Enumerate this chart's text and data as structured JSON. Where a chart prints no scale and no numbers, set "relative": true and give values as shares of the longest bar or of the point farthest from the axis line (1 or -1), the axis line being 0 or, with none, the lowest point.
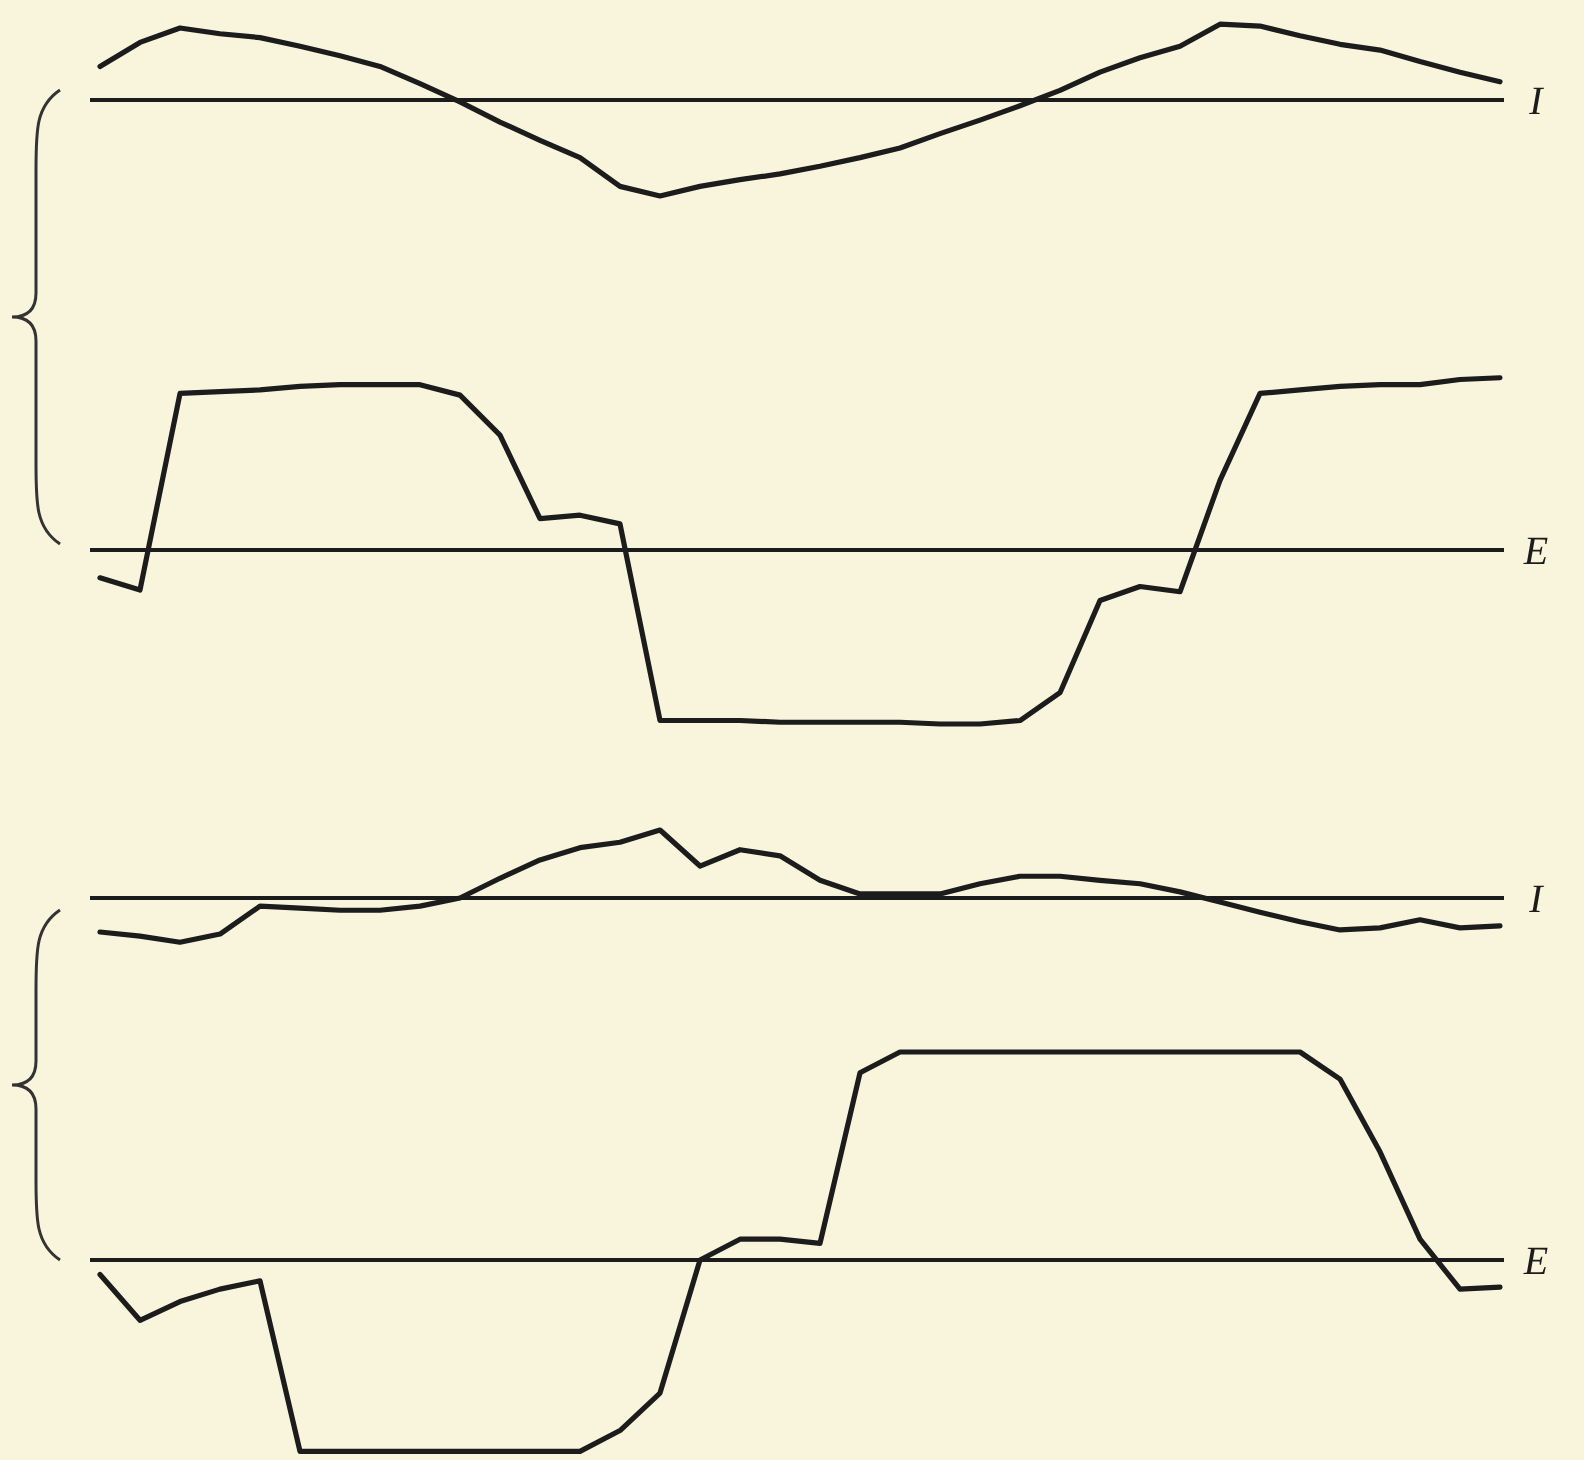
{
  "chart_data": [
    {
      "type": "line",
      "relative": true,
      "ylabel": "I",
      "categories": [
        null,
        null,
        null,
        null,
        null,
        null,
        null,
        null,
        null,
        null,
        null,
        null,
        null,
        null,
        null,
        null,
        null,
        null,
        null,
        null,
        null,
        null,
        null,
        null,
        null,
        null,
        null,
        null,
        null,
        null,
        null,
        null,
        null,
        null,
        null,
        null
      ],
      "series": [
        {
          "color": "#1c1c1c",
          "values": [
            0.35,
            0.6,
            0.75,
            0.69,
            0.65,
            0.56,
            0.46,
            0.35,
            0.17,
            -0.02,
            -0.23,
            -0.42,
            -0.6,
            -0.9,
            -1,
            -0.9,
            -0.83,
            -0.77,
            -0.69,
            -0.6,
            -0.5,
            -0.35,
            -0.21,
            -0.06,
            0.1,
            0.29,
            0.44,
            0.56,
            0.79,
            0.77,
            0.67,
            0.58,
            0.52,
            0.4,
            0.29,
            0.19
          ]
        }
      ]
    },
    {
      "type": "line",
      "relative": true,
      "ylabel": "E",
      "categories": [
        null,
        null,
        null,
        null,
        null,
        null,
        null,
        null,
        null,
        null,
        null,
        null,
        null,
        null,
        null,
        null,
        null,
        null,
        null,
        null,
        null,
        null,
        null,
        null,
        null,
        null,
        null,
        null,
        null,
        null,
        null,
        null,
        null,
        null,
        null,
        null
      ],
      "series": [
        {
          "color": "#1c1c1c",
          "values": [
            -0.16,
            -0.23,
            0.9,
            0.91,
            0.92,
            0.94,
            0.95,
            0.95,
            0.95,
            0.89,
            0.66,
            0.18,
            0.2,
            0.15,
            -0.98,
            -0.98,
            -0.98,
            -0.99,
            -0.99,
            -0.99,
            -0.99,
            -1,
            -1,
            -0.98,
            -0.82,
            -0.29,
            -0.21,
            -0.24,
            0.4,
            0.9,
            0.92,
            0.94,
            0.95,
            0.95,
            0.98,
            0.99
          ]
        }
      ]
    },
    {
      "type": "line",
      "relative": true,
      "ylabel": "I",
      "categories": [
        null,
        null,
        null,
        null,
        null,
        null,
        null,
        null,
        null,
        null,
        null,
        null,
        null,
        null,
        null,
        null,
        null,
        null,
        null,
        null,
        null,
        null,
        null,
        null,
        null,
        null,
        null,
        null,
        null,
        null,
        null,
        null,
        null,
        null,
        null,
        null
      ],
      "series": [
        {
          "color": "#1c1c1c",
          "values": [
            -0.5,
            -0.56,
            -0.65,
            -0.53,
            -0.12,
            -0.15,
            -0.18,
            -0.18,
            -0.12,
            0,
            0.29,
            0.56,
            0.74,
            0.82,
            1,
            0.47,
            0.71,
            0.62,
            0.26,
            0.06,
            0.06,
            0.06,
            0.21,
            0.32,
            0.32,
            0.26,
            0.21,
            0.09,
            -0.06,
            -0.21,
            -0.35,
            -0.47,
            -0.44,
            -0.32,
            -0.44,
            -0.41
          ]
        }
      ]
    },
    {
      "type": "line",
      "relative": true,
      "ylabel": "E",
      "categories": [
        null,
        null,
        null,
        null,
        null,
        null,
        null,
        null,
        null,
        null,
        null,
        null,
        null,
        null,
        null,
        null,
        null,
        null,
        null,
        null,
        null,
        null,
        null,
        null,
        null,
        null,
        null,
        null,
        null,
        null,
        null,
        null,
        null,
        null,
        null,
        null
      ],
      "series": [
        {
          "color": "#1c1c1c",
          "values": [
            -0.07,
            -0.29,
            -0.2,
            -0.14,
            -0.1,
            -0.92,
            -0.92,
            -0.92,
            -0.92,
            -0.92,
            -0.92,
            -0.92,
            -0.92,
            -0.82,
            -0.64,
            0,
            0.1,
            0.1,
            0.08,
            0.9,
            1,
            1,
            1,
            1,
            1,
            1,
            1,
            1,
            1,
            1,
            1,
            0.87,
            0.52,
            0.1,
            -0.14,
            -0.13
          ]
        }
      ]
    }
  ]
}
